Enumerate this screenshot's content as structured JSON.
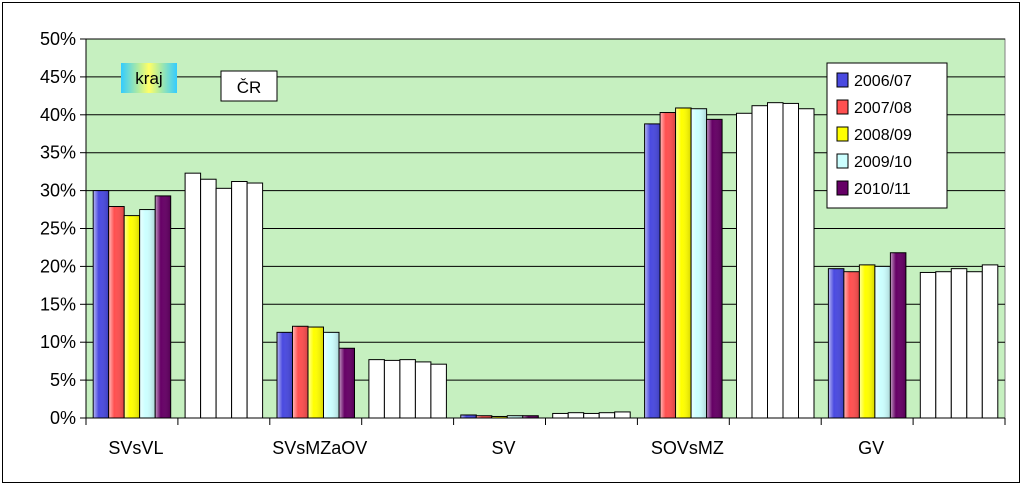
{
  "chart_data": {
    "type": "bar",
    "title": "",
    "xlabel": "",
    "ylabel": "",
    "ylim": [
      0,
      50
    ],
    "y_tick_format": "percent",
    "y_ticks": [
      0,
      5,
      10,
      15,
      20,
      25,
      30,
      35,
      40,
      45,
      50
    ],
    "grid": true,
    "legend_position": "top-right",
    "plot_background": "#c6f0c0",
    "categories": [
      "SVsVL",
      "SVsMZaOV",
      "SV",
      "SOVsMZ",
      "GV"
    ],
    "group_labels": [
      {
        "text": "kraj",
        "style": "gradient"
      },
      {
        "text": "ČR",
        "style": "white"
      }
    ],
    "series": [
      {
        "name": "2006/07",
        "color": "#4a4ae0",
        "kraj": [
          30.0,
          11.3,
          0.4,
          38.8,
          19.7
        ],
        "cr": [
          32.3,
          7.7,
          0.6,
          40.2,
          19.2
        ]
      },
      {
        "name": "2007/08",
        "color": "#ff5050",
        "kraj": [
          27.9,
          12.1,
          0.3,
          40.3,
          19.3
        ],
        "cr": [
          31.5,
          7.6,
          0.7,
          41.2,
          19.3
        ]
      },
      {
        "name": "2008/09",
        "color": "#ffff00",
        "kraj": [
          26.7,
          12.0,
          0.2,
          40.9,
          20.2
        ],
        "cr": [
          30.3,
          7.7,
          0.6,
          41.6,
          19.7
        ]
      },
      {
        "name": "2009/10",
        "color": "#ccffff",
        "kraj": [
          27.5,
          11.3,
          0.3,
          40.8,
          20.0
        ],
        "cr": [
          31.2,
          7.4,
          0.7,
          41.5,
          19.3
        ]
      },
      {
        "name": "2010/11",
        "color": "#660066",
        "kraj": [
          29.3,
          9.2,
          0.3,
          39.4,
          21.8
        ],
        "cr": [
          31.0,
          7.1,
          0.8,
          40.8,
          20.2
        ]
      }
    ]
  }
}
